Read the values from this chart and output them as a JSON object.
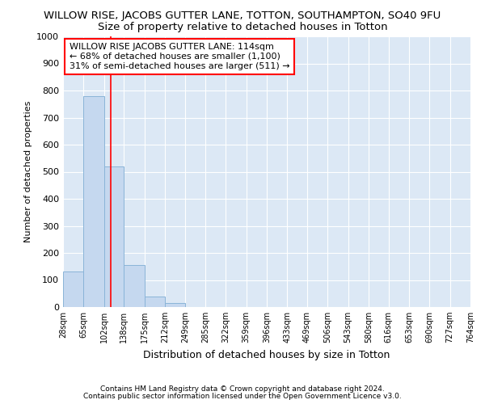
{
  "title": "WILLOW RISE, JACOBS GUTTER LANE, TOTTON, SOUTHAMPTON, SO40 9FU",
  "subtitle": "Size of property relative to detached houses in Totton",
  "xlabel": "Distribution of detached houses by size in Totton",
  "ylabel": "Number of detached properties",
  "footnote1": "Contains HM Land Registry data © Crown copyright and database right 2024.",
  "footnote2": "Contains public sector information licensed under the Open Government Licence v3.0.",
  "annotation_line1": "WILLOW RISE JACOBS GUTTER LANE: 114sqm",
  "annotation_line2": "← 68% of detached houses are smaller (1,100)",
  "annotation_line3": "31% of semi-detached houses are larger (511) →",
  "bar_color": "#c5d8ef",
  "bar_edge_color": "#8ab4d8",
  "red_line_x": 114,
  "ylim": [
    0,
    1000
  ],
  "yticks": [
    0,
    100,
    200,
    300,
    400,
    500,
    600,
    700,
    800,
    900,
    1000
  ],
  "bin_edges": [
    28,
    65,
    102,
    138,
    175,
    212,
    249,
    285,
    322,
    359,
    396,
    433,
    469,
    506,
    543,
    580,
    616,
    653,
    690,
    727,
    764
  ],
  "bar_heights": [
    130,
    780,
    520,
    155,
    40,
    15,
    0,
    0,
    0,
    0,
    0,
    0,
    0,
    0,
    0,
    0,
    0,
    0,
    0,
    0
  ],
  "background_color": "#dce8f5",
  "fig_background_color": "#ffffff",
  "grid_color": "#ffffff",
  "title_fontsize": 9.5,
  "subtitle_fontsize": 9.5,
  "ylabel_fontsize": 8,
  "xlabel_fontsize": 9,
  "xtick_fontsize": 7,
  "ytick_fontsize": 8,
  "footnote_fontsize": 6.5,
  "annot_fontsize": 8
}
